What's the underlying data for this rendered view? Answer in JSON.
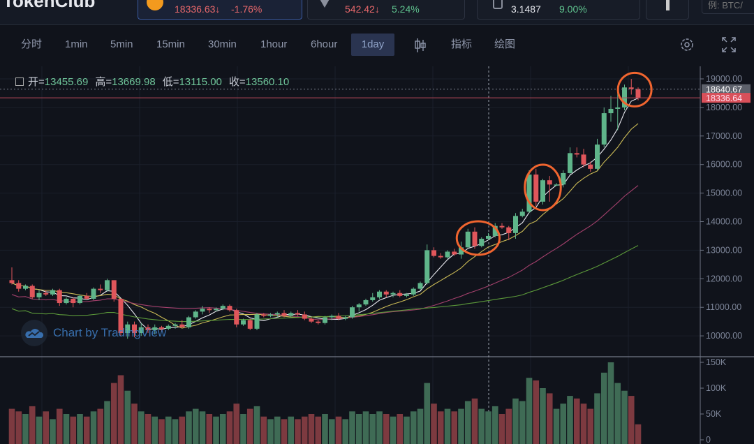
{
  "header": {
    "logo": "TokenClub",
    "tickers": [
      {
        "price": "18336.63↓",
        "change": "-1.76%",
        "change_dir": "down"
      },
      {
        "price": "542.42↓",
        "change": "5.24%",
        "change_dir": "up"
      },
      {
        "price": "3.1487",
        "change": "9.00%",
        "change_dir": "up"
      }
    ],
    "search_placeholder": "例: BTC/"
  },
  "toolbar": {
    "intervals": [
      "分时",
      "1min",
      "5min",
      "15min",
      "30min",
      "1hour",
      "6hour",
      "1day"
    ],
    "selected": "1day",
    "indicators": "指标",
    "drawing": "绘图"
  },
  "legend": {
    "open_label": "开=",
    "open": "13455.69",
    "high_label": "高=",
    "high": "13669.98",
    "low_label": "低=",
    "low": "13115.00",
    "close_label": "收=",
    "close": "13560.10"
  },
  "watermark": "Chart by TradingView",
  "colors": {
    "up": "#5fb58a",
    "down": "#e0565b",
    "ma5": "#e8e8ef",
    "ma10": "#c9b955",
    "ma30": "#a3406c",
    "ma60": "#5c9a3a",
    "highlight": "#f0652f"
  },
  "chart_data": {
    "type": "candlestick",
    "price_ticks": [
      "19000.00",
      "18000.00",
      "17000.00",
      "16000.00",
      "15000.00",
      "14000.00",
      "13000.00",
      "12000.00",
      "11000.00",
      "10000.00"
    ],
    "price_range": [
      9700,
      19300
    ],
    "volume_ticks": [
      "150K",
      "100K",
      "50K",
      "0"
    ],
    "volume_range": [
      0,
      150
    ],
    "last_price_label": "18640.67",
    "current_price_label": "18336.64",
    "moving_averages": [
      5,
      10,
      30,
      60
    ],
    "candles_ohlcv_k": [
      [
        11950,
        12400,
        11800,
        11850,
        60
      ],
      [
        11850,
        11950,
        11550,
        11650,
        55
      ],
      [
        11650,
        11800,
        11600,
        11750,
        50
      ],
      [
        11750,
        11800,
        11300,
        11350,
        65
      ],
      [
        11350,
        11600,
        11250,
        11500,
        45
      ],
      [
        11500,
        11600,
        11400,
        11450,
        55
      ],
      [
        11450,
        11650,
        11400,
        11600,
        40
      ],
      [
        11600,
        11650,
        11050,
        11150,
        60
      ],
      [
        11150,
        11350,
        11100,
        11300,
        50
      ],
      [
        11300,
        11350,
        11000,
        11150,
        45
      ],
      [
        11150,
        11450,
        11100,
        11400,
        50
      ],
      [
        11400,
        11500,
        11250,
        11300,
        45
      ],
      [
        11300,
        11700,
        11250,
        11650,
        55
      ],
      [
        11650,
        11800,
        11500,
        11600,
        60
      ],
      [
        11600,
        12000,
        11550,
        11950,
        75
      ],
      [
        11950,
        11950,
        11200,
        11300,
        110
      ],
      [
        11300,
        11300,
        10000,
        10100,
        125
      ],
      [
        10100,
        10500,
        9900,
        10400,
        95
      ],
      [
        10400,
        10500,
        9950,
        10100,
        70
      ],
      [
        10100,
        10450,
        10000,
        10300,
        55
      ],
      [
        10300,
        10400,
        10100,
        10200,
        50
      ],
      [
        10200,
        10400,
        10050,
        10300,
        45
      ],
      [
        10300,
        10350,
        10150,
        10250,
        40
      ],
      [
        10250,
        10400,
        10200,
        10350,
        45
      ],
      [
        10350,
        10450,
        10250,
        10400,
        40
      ],
      [
        10400,
        10550,
        10300,
        10300,
        45
      ],
      [
        10300,
        10700,
        10250,
        10650,
        55
      ],
      [
        10650,
        10900,
        10600,
        10850,
        60
      ],
      [
        10850,
        11050,
        10750,
        10950,
        55
      ],
      [
        10950,
        11000,
        10800,
        10900,
        50
      ],
      [
        10900,
        11000,
        10850,
        10950,
        45
      ],
      [
        10950,
        11100,
        10900,
        11050,
        50
      ],
      [
        11050,
        11100,
        10850,
        10900,
        55
      ],
      [
        10900,
        10950,
        10300,
        10400,
        70
      ],
      [
        10400,
        10600,
        10350,
        10550,
        50
      ],
      [
        10550,
        10600,
        10200,
        10250,
        60
      ],
      [
        10250,
        10800,
        10200,
        10750,
        65
      ],
      [
        10750,
        10800,
        10650,
        10700,
        45
      ],
      [
        10700,
        10800,
        10650,
        10750,
        40
      ],
      [
        10750,
        10850,
        10650,
        10800,
        45
      ],
      [
        10800,
        10900,
        10650,
        10700,
        40
      ],
      [
        10700,
        10850,
        10650,
        10800,
        45
      ],
      [
        10800,
        10900,
        10700,
        10750,
        40
      ],
      [
        10750,
        10850,
        10550,
        10600,
        45
      ],
      [
        10600,
        10650,
        10450,
        10500,
        50
      ],
      [
        10500,
        10550,
        10400,
        10450,
        45
      ],
      [
        10450,
        10700,
        10400,
        10650,
        50
      ],
      [
        10650,
        10750,
        10550,
        10700,
        40
      ],
      [
        10700,
        10800,
        10550,
        10600,
        45
      ],
      [
        10600,
        10700,
        10550,
        10650,
        40
      ],
      [
        10650,
        11050,
        10600,
        11000,
        55
      ],
      [
        11000,
        11150,
        10850,
        11100,
        50
      ],
      [
        11100,
        11300,
        11050,
        11250,
        55
      ],
      [
        11250,
        11500,
        11200,
        11350,
        50
      ],
      [
        11350,
        11600,
        11300,
        11550,
        55
      ],
      [
        11550,
        11600,
        11350,
        11450,
        50
      ],
      [
        11450,
        11550,
        11350,
        11500,
        45
      ],
      [
        11500,
        11600,
        11350,
        11400,
        50
      ],
      [
        11400,
        11500,
        11350,
        11450,
        45
      ],
      [
        11450,
        11700,
        11400,
        11650,
        55
      ],
      [
        11650,
        11900,
        11600,
        11850,
        60
      ],
      [
        11850,
        13200,
        11800,
        13000,
        110
      ],
      [
        13000,
        13100,
        12750,
        12800,
        70
      ],
      [
        12800,
        12900,
        12700,
        12750,
        55
      ],
      [
        12750,
        13000,
        12700,
        12950,
        60
      ],
      [
        12950,
        13050,
        12800,
        12850,
        55
      ],
      [
        12850,
        13300,
        12700,
        13100,
        60
      ],
      [
        13100,
        13750,
        13050,
        13650,
        75
      ],
      [
        13650,
        13800,
        13050,
        13150,
        80
      ],
      [
        13150,
        13450,
        13100,
        13400,
        60
      ],
      [
        13400,
        13600,
        13350,
        13500,
        55
      ],
      [
        13500,
        13950,
        13450,
        13850,
        65
      ],
      [
        13850,
        13950,
        13750,
        13800,
        50
      ],
      [
        13800,
        13850,
        13350,
        13600,
        60
      ],
      [
        13600,
        14300,
        13400,
        14200,
        80
      ],
      [
        14200,
        14450,
        14150,
        14350,
        75
      ],
      [
        14350,
        15800,
        14300,
        15650,
        120
      ],
      [
        15650,
        15850,
        14550,
        14700,
        115
      ],
      [
        14700,
        15500,
        14600,
        15450,
        100
      ],
      [
        15450,
        15600,
        14700,
        15300,
        90
      ],
      [
        15300,
        15350,
        15250,
        15300,
        60
      ],
      [
        15300,
        15800,
        15200,
        15700,
        70
      ],
      [
        15700,
        16600,
        15650,
        16400,
        85
      ],
      [
        16400,
        16600,
        16250,
        16350,
        80
      ],
      [
        16350,
        16550,
        15900,
        16000,
        70
      ],
      [
        16000,
        16100,
        15750,
        15850,
        60
      ],
      [
        15850,
        16900,
        15800,
        16700,
        90
      ],
      [
        16700,
        18000,
        16600,
        17800,
        130
      ],
      [
        17800,
        18400,
        17500,
        17950,
        150
      ],
      [
        17950,
        18700,
        17200,
        18000,
        110
      ],
      [
        18000,
        18800,
        17900,
        18700,
        95
      ],
      [
        18700,
        19000,
        18450,
        18650,
        85
      ],
      [
        18640,
        18700,
        18250,
        18336,
        30
      ]
    ],
    "highlighted_candle_ranges": [
      [
        67,
        70
      ],
      [
        77,
        79
      ],
      [
        91,
        92
      ]
    ]
  }
}
